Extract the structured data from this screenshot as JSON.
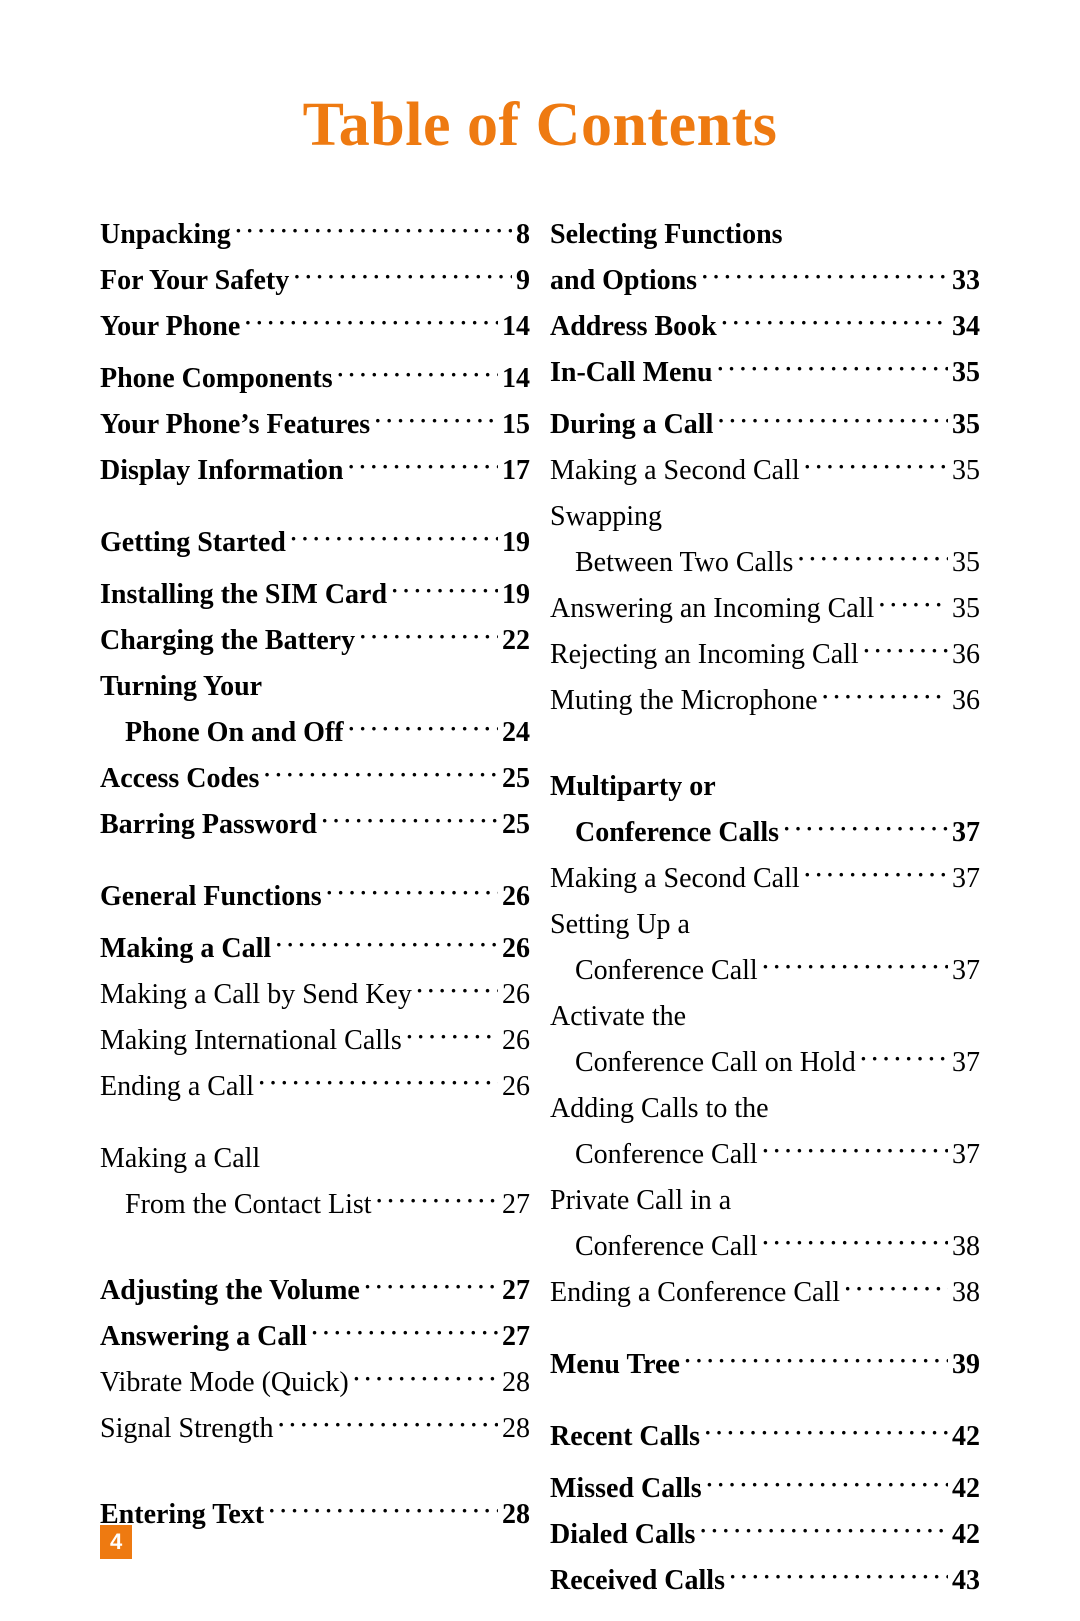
{
  "title": "Table of Contents",
  "title_color": "#ee7a11",
  "page_number_badge": "4",
  "badge_bg": "#ee7a11",
  "badge_fg": "#ffffff",
  "background_color": "#ffffff",
  "text_color": "#000000",
  "font_family": "Times New Roman",
  "title_fontsize_pt": 46,
  "body_fontsize_pt": 21,
  "columns": [
    {
      "entries": [
        {
          "label": "Unpacking",
          "page": "8",
          "bold": true
        },
        {
          "label": "For Your Safety",
          "page": "9",
          "bold": true
        },
        {
          "label": "Your Phone",
          "page": "14",
          "bold": true
        },
        {
          "spacer": "xs"
        },
        {
          "label": "Phone Components",
          "page": "14",
          "bold": true
        },
        {
          "label": "Your Phone’s Features",
          "page": "15",
          "bold": true
        },
        {
          "label": "Display Information",
          "page": "17",
          "bold": true
        },
        {
          "spacer": "s"
        },
        {
          "label": "Getting Started",
          "page": "19",
          "bold": true
        },
        {
          "spacer": "xs"
        },
        {
          "label": "Installing the SIM Card",
          "page": "19",
          "bold": true
        },
        {
          "label": "Charging the Battery",
          "page": "22",
          "bold": true
        },
        {
          "label": "Turning Your",
          "bold": true,
          "noleader": true
        },
        {
          "label": "Phone On and Off",
          "page": "24",
          "bold": true,
          "indent": true
        },
        {
          "label": "Access Codes",
          "page": "25",
          "bold": true
        },
        {
          "label": "Barring Password",
          "page": "25",
          "bold": true
        },
        {
          "spacer": "s"
        },
        {
          "label": "General Functions",
          "page": "26",
          "bold": true
        },
        {
          "spacer": "xs"
        },
        {
          "label": "Making a Call",
          "page": "26",
          "bold": true
        },
        {
          "label": "Making a Call by Send Key",
          "page": "26"
        },
        {
          "label": "Making International Calls",
          "page": "26"
        },
        {
          "label": "Ending a Call",
          "page": "26"
        },
        {
          "spacer": "s"
        },
        {
          "label": "Making a Call",
          "noleader": true
        },
        {
          "label": "From the Contact List",
          "page": "27",
          "indent": true
        },
        {
          "spacer": "m"
        },
        {
          "label": "Adjusting the Volume",
          "page": "27",
          "bold": true
        },
        {
          "label": "Answering a Call",
          "page": "27",
          "bold": true
        },
        {
          "label": "Vibrate Mode (Quick)",
          "page": "28"
        },
        {
          "label": "Signal Strength",
          "page": "28"
        },
        {
          "spacer": "m"
        },
        {
          "label": "Entering Text",
          "page": "28",
          "bold": true
        }
      ]
    },
    {
      "entries": [
        {
          "label": "Selecting Functions",
          "bold": true,
          "noleader": true
        },
        {
          "label": "and Options",
          "page": "33",
          "bold": true
        },
        {
          "label": "Address Book",
          "page": "34",
          "bold": true
        },
        {
          "label": "In-Call Menu",
          "page": "35",
          "bold": true
        },
        {
          "spacer": "xs"
        },
        {
          "label": "During a Call",
          "page": "35",
          "bold": true
        },
        {
          "label": "Making a Second Call",
          "page": "35"
        },
        {
          "label": "Swapping",
          "noleader": true
        },
        {
          "label": "Between Two Calls",
          "page": "35",
          "indent": true
        },
        {
          "label": "Answering an Incoming Call",
          "page": "35"
        },
        {
          "label": "Rejecting an Incoming Call",
          "page": "36"
        },
        {
          "label": "Muting the Microphone",
          "page": "36"
        },
        {
          "spacer": "m"
        },
        {
          "label": "Multiparty or",
          "bold": true,
          "noleader": true
        },
        {
          "label": "Conference Calls",
          "page": "37",
          "bold": true,
          "indent": true
        },
        {
          "label": "Making a Second Call",
          "page": "37"
        },
        {
          "label": "Setting Up a",
          "noleader": true
        },
        {
          "label": "Conference Call",
          "page": "37",
          "indent": true
        },
        {
          "label": "Activate the",
          "noleader": true
        },
        {
          "label": "Conference Call on Hold",
          "page": "37",
          "indent": true
        },
        {
          "label": "Adding Calls to the",
          "noleader": true
        },
        {
          "label": "Conference Call",
          "page": "37",
          "indent": true
        },
        {
          "label": "Private Call in a",
          "noleader": true
        },
        {
          "label": "Conference Call",
          "page": "38",
          "indent": true
        },
        {
          "label": "Ending a Conference Call",
          "page": "38"
        },
        {
          "spacer": "s"
        },
        {
          "label": "Menu Tree",
          "page": "39",
          "bold": true
        },
        {
          "spacer": "s"
        },
        {
          "label": "Recent Calls",
          "page": "42",
          "bold": true
        },
        {
          "spacer": "xs"
        },
        {
          "label": "Missed Calls",
          "page": "42",
          "bold": true
        },
        {
          "label": "Dialed Calls",
          "page": "42",
          "bold": true
        },
        {
          "label": "Received Calls",
          "page": "43",
          "bold": true
        }
      ]
    }
  ]
}
